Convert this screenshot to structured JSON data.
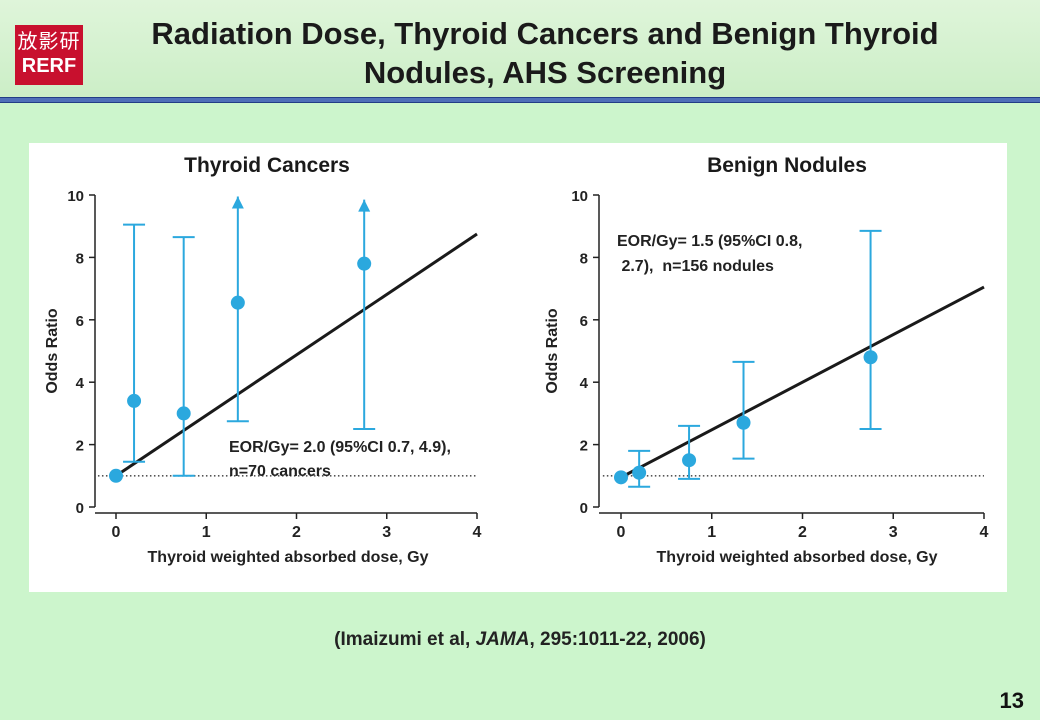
{
  "slide": {
    "title": "Radiation Dose, Thyroid Cancers and Benign Thyroid Nodules, AHS Screening",
    "logo": {
      "kanji": "放影研",
      "latin": "RERF"
    },
    "citation": {
      "prefix": "(Imaizumi et al, ",
      "journal": "JAMA",
      "suffix": ", 295:1011-22, 2006)"
    },
    "slide_number": "13"
  },
  "colors": {
    "marker": "#2ba8de",
    "fit_line": "#1a1a1a",
    "reference_line": "#555555"
  },
  "chart_data": [
    {
      "type": "scatter",
      "title": "Thyroid Cancers",
      "xlabel": "Thyroid weighted absorbed dose, Gy",
      "ylabel": "Odds Ratio",
      "xlim": [
        -0.25,
        4.0
      ],
      "ylim": [
        0,
        10
      ],
      "xticks": [
        0,
        1,
        2,
        3,
        4
      ],
      "yticks": [
        0,
        2,
        4,
        6,
        8,
        10
      ],
      "reference_y": 1.0,
      "points": [
        {
          "x": 0.0,
          "y": 1.0
        },
        {
          "x": 0.2,
          "y": 3.4,
          "lower": 1.45,
          "upper": 9.05
        },
        {
          "x": 0.75,
          "y": 3.0,
          "lower": 1.0,
          "upper": 8.65
        },
        {
          "x": 1.35,
          "y": 6.55,
          "lower": 2.75,
          "upper": 9.95,
          "upper_open": true
        },
        {
          "x": 2.75,
          "y": 7.8,
          "lower": 2.5,
          "upper": 9.85,
          "upper_open": true
        }
      ],
      "fit_line": {
        "x": [
          0.0,
          4.0
        ],
        "y": [
          1.0,
          8.75
        ]
      },
      "annotation": {
        "lines": [
          "EOR/Gy= 2.0 (95%CI 0.7, 4.9),",
          "n=70 cancers"
        ]
      }
    },
    {
      "type": "scatter",
      "title": "Benign Nodules",
      "xlabel": "Thyroid weighted absorbed dose, Gy",
      "ylabel": "Odds Ratio",
      "xlim": [
        -0.25,
        4.0
      ],
      "ylim": [
        0,
        10
      ],
      "xticks": [
        0,
        1,
        2,
        3,
        4
      ],
      "yticks": [
        0,
        2,
        4,
        6,
        8,
        10
      ],
      "reference_y": 1.0,
      "points": [
        {
          "x": 0.0,
          "y": 0.95
        },
        {
          "x": 0.2,
          "y": 1.1,
          "lower": 0.65,
          "upper": 1.8
        },
        {
          "x": 0.75,
          "y": 1.5,
          "lower": 0.9,
          "upper": 2.6
        },
        {
          "x": 1.35,
          "y": 2.7,
          "lower": 1.55,
          "upper": 4.65
        },
        {
          "x": 2.75,
          "y": 4.8,
          "lower": 2.5,
          "upper": 8.85
        }
      ],
      "fit_line": {
        "x": [
          0.0,
          4.0
        ],
        "y": [
          0.95,
          7.05
        ]
      },
      "annotation": {
        "lines": [
          "EOR/Gy= 1.5 (95%CI 0.8,",
          " 2.7),  n=156 nodules"
        ]
      }
    }
  ]
}
